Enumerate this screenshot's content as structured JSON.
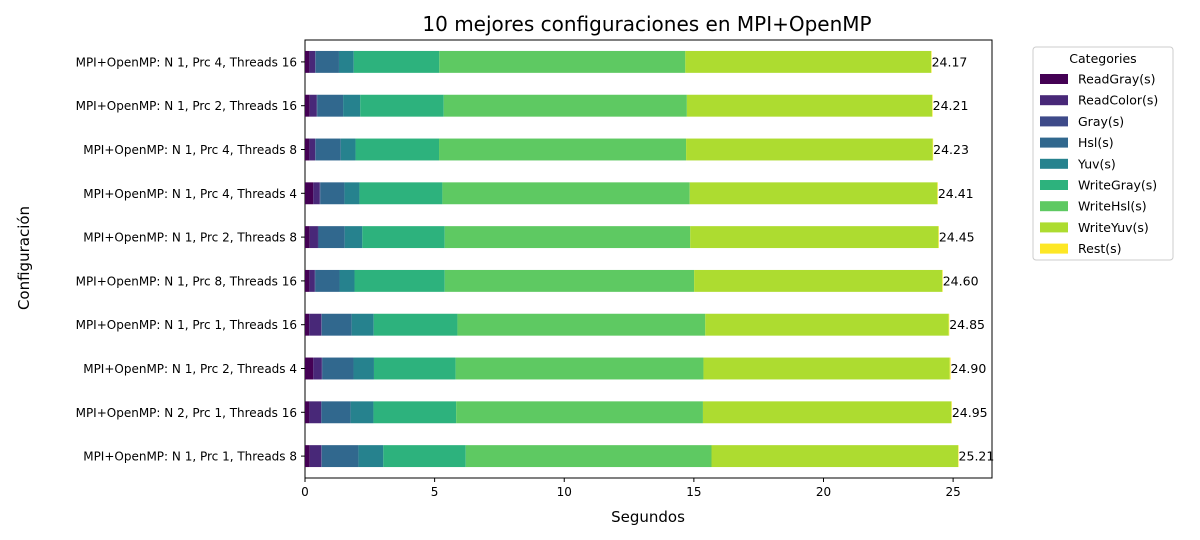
{
  "chart_data": {
    "type": "bar",
    "orientation": "horizontal",
    "stacked": true,
    "title": "10 mejores configuraciones en MPI+OpenMP",
    "xlabel": "Segundos",
    "ylabel": "Configuración",
    "xlim": [
      0,
      26.5
    ],
    "xticks": [
      0,
      5,
      10,
      15,
      20,
      25
    ],
    "grid": false,
    "legend_title": "Categories",
    "legend_position": "outside-top-right",
    "categories": [
      "MPI+OpenMP: N 1, Prc 1, Threads 8",
      "MPI+OpenMP: N 2, Prc 1, Threads 16",
      "MPI+OpenMP: N 1, Prc 2, Threads 4",
      "MPI+OpenMP: N 1, Prc 1, Threads 16",
      "MPI+OpenMP: N 1, Prc 8, Threads 16",
      "MPI+OpenMP: N 1, Prc 2, Threads 8",
      "MPI+OpenMP: N 1, Prc 4, Threads 4",
      "MPI+OpenMP: N 1, Prc 4, Threads 8",
      "MPI+OpenMP: N 1, Prc 2, Threads 16",
      "MPI+OpenMP: N 1, Prc 4, Threads 16"
    ],
    "totals": [
      "25.21",
      "24.95",
      "24.90",
      "24.85",
      "24.60",
      "24.45",
      "24.41",
      "24.23",
      "24.21",
      "24.17"
    ],
    "series": [
      {
        "name": "ReadGray(s)",
        "color": "#440154",
        "values": [
          0.18,
          0.17,
          0.32,
          0.16,
          0.17,
          0.18,
          0.32,
          0.17,
          0.18,
          0.17
        ]
      },
      {
        "name": "ReadColor(s)",
        "color": "#482878",
        "values": [
          0.45,
          0.45,
          0.33,
          0.47,
          0.21,
          0.32,
          0.25,
          0.22,
          0.27,
          0.22
        ]
      },
      {
        "name": "Gray(s)",
        "color": "#3e4a89",
        "values": [
          0.02,
          0.02,
          0.02,
          0.02,
          0.02,
          0.02,
          0.02,
          0.02,
          0.02,
          0.02
        ]
      },
      {
        "name": "Hsl(s)",
        "color": "#31688e",
        "values": [
          1.41,
          1.12,
          1.2,
          1.15,
          0.93,
          1.01,
          0.93,
          0.97,
          1.0,
          0.9
        ]
      },
      {
        "name": "Yuv(s)",
        "color": "#26828e",
        "values": [
          0.96,
          0.88,
          0.79,
          0.85,
          0.58,
          0.68,
          0.58,
          0.57,
          0.66,
          0.57
        ]
      },
      {
        "name": "WriteGray(s)",
        "color": "#2db27d",
        "values": [
          3.18,
          3.19,
          3.15,
          3.23,
          3.48,
          3.18,
          3.2,
          3.22,
          3.22,
          3.3
        ]
      },
      {
        "name": "WriteHsl(s)",
        "color": "#5ec962",
        "values": [
          9.48,
          9.52,
          9.56,
          9.56,
          9.62,
          9.47,
          9.54,
          9.53,
          9.38,
          9.49
        ]
      },
      {
        "name": "WriteYuv(s)",
        "color": "#addc30",
        "values": [
          9.51,
          9.58,
          9.5,
          9.39,
          9.57,
          9.57,
          9.55,
          9.51,
          9.46,
          9.48
        ]
      },
      {
        "name": "Rest(s)",
        "color": "#fde725",
        "values": [
          0.02,
          0.02,
          0.03,
          0.02,
          0.02,
          0.02,
          0.02,
          0.02,
          0.02,
          0.02
        ]
      }
    ]
  }
}
